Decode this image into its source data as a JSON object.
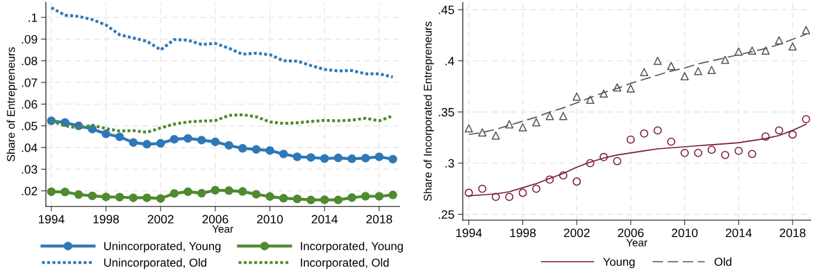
{
  "chart_data": [
    {
      "type": "line",
      "xlabel": "Year",
      "ylabel": "Share of Entrepreneurs",
      "x": [
        1994,
        1995,
        1996,
        1997,
        1998,
        1999,
        2000,
        2001,
        2002,
        2003,
        2004,
        2005,
        2006,
        2007,
        2008,
        2009,
        2010,
        2011,
        2012,
        2013,
        2014,
        2015,
        2016,
        2017,
        2018,
        2019
      ],
      "xlim": [
        1993.6,
        2019.5
      ],
      "xticks": [
        1994,
        1998,
        2002,
        2006,
        2010,
        2014,
        2018
      ],
      "ylim": [
        0.0128,
        0.107
      ],
      "yticks": [
        {
          "value": 0.02,
          "label": ".02"
        },
        {
          "value": 0.03,
          "label": ".03"
        },
        {
          "value": 0.04,
          "label": ".04"
        },
        {
          "value": 0.05,
          "label": ".05"
        },
        {
          "value": 0.06,
          "label": ".06"
        },
        {
          "value": 0.07,
          "label": ".07"
        },
        {
          "value": 0.08,
          "label": ".08"
        },
        {
          "value": 0.09,
          "label": ".09"
        },
        {
          "value": 0.1,
          "label": ".1"
        }
      ],
      "grid": true,
      "legend": "bottom",
      "series": [
        {
          "name": "Unincorporated, Young",
          "color": "#2f78b7",
          "marker": "circle",
          "line_style": "solid",
          "values": [
            0.0523,
            0.0515,
            0.05,
            0.0485,
            0.0463,
            0.0449,
            0.0423,
            0.0415,
            0.0419,
            0.0438,
            0.0442,
            0.0434,
            0.0426,
            0.041,
            0.0396,
            0.0391,
            0.0386,
            0.037,
            0.0357,
            0.0354,
            0.0349,
            0.0352,
            0.0348,
            0.0351,
            0.0357,
            0.0346
          ]
        },
        {
          "name": "Unincorporated, Old",
          "color": "#2f78b7",
          "marker": "none",
          "line_style": "dotted",
          "values": [
            0.1045,
            0.101,
            0.1005,
            0.099,
            0.0965,
            0.092,
            0.0905,
            0.089,
            0.085,
            0.0898,
            0.0895,
            0.0875,
            0.088,
            0.0858,
            0.083,
            0.0835,
            0.0828,
            0.08,
            0.0798,
            0.0778,
            0.076,
            0.0753,
            0.0755,
            0.074,
            0.074,
            0.0725
          ]
        },
        {
          "name": "Incorporated, Young",
          "color": "#4f8a2f",
          "marker": "circle",
          "line_style": "solid",
          "values": [
            0.0196,
            0.0195,
            0.0183,
            0.0177,
            0.0172,
            0.0171,
            0.0168,
            0.0168,
            0.0165,
            0.0188,
            0.0196,
            0.0189,
            0.0203,
            0.0201,
            0.0197,
            0.0184,
            0.0174,
            0.0166,
            0.0163,
            0.0158,
            0.0159,
            0.0158,
            0.0169,
            0.0175,
            0.0175,
            0.0181
          ]
        },
        {
          "name": "Incorporated, Old",
          "color": "#4f8a2f",
          "marker": "none",
          "line_style": "dotted",
          "values": [
            0.0522,
            0.05,
            0.049,
            0.0503,
            0.0487,
            0.0476,
            0.0478,
            0.047,
            0.049,
            0.0508,
            0.0518,
            0.0522,
            0.0524,
            0.0548,
            0.0551,
            0.0542,
            0.0518,
            0.0511,
            0.0514,
            0.052,
            0.0525,
            0.0523,
            0.0526,
            0.0535,
            0.0523,
            0.0546
          ]
        }
      ]
    },
    {
      "type": "line",
      "xlabel": "Year",
      "ylabel": "Share of Incorporated Entrepreneurs",
      "x": [
        1994,
        1995,
        1996,
        1997,
        1998,
        1999,
        2000,
        2001,
        2002,
        2003,
        2004,
        2005,
        2006,
        2007,
        2008,
        2009,
        2010,
        2011,
        2012,
        2013,
        2014,
        2015,
        2016,
        2017,
        2018,
        2019
      ],
      "xlim": [
        1993.55,
        2019.35
      ],
      "xticks": [
        1994,
        1998,
        2002,
        2006,
        2010,
        2014,
        2018
      ],
      "ylim": [
        0.2443,
        0.457
      ],
      "yticks": [
        {
          "value": 0.25,
          "label": ".25"
        },
        {
          "value": 0.3,
          "label": ".3"
        },
        {
          "value": 0.35,
          "label": ".35"
        },
        {
          "value": 0.4,
          "label": ".4"
        },
        {
          "value": 0.45,
          "label": ".45"
        }
      ],
      "grid": true,
      "legend": "bottom",
      "series": [
        {
          "type": "scatter",
          "color": "#7b1a3a",
          "marker": "circle",
          "values": [
            0.271,
            0.275,
            0.267,
            0.267,
            0.271,
            0.275,
            0.284,
            0.288,
            0.282,
            0.3,
            0.306,
            0.302,
            0.323,
            0.329,
            0.332,
            0.321,
            0.31,
            0.31,
            0.313,
            0.308,
            0.312,
            0.309,
            0.326,
            0.332,
            0.328,
            0.343
          ]
        },
        {
          "type": "scatter",
          "color": "#555555",
          "marker": "triangle",
          "values": [
            0.334,
            0.33,
            0.327,
            0.338,
            0.335,
            0.34,
            0.346,
            0.346,
            0.365,
            0.362,
            0.368,
            0.374,
            0.373,
            0.389,
            0.4,
            0.395,
            0.385,
            0.39,
            0.391,
            0.401,
            0.409,
            0.41,
            0.41,
            0.42,
            0.414,
            0.43
          ]
        },
        {
          "name": "Young",
          "type": "line",
          "color": "#7b1a3a",
          "marker": "none",
          "line_style": "solid",
          "values": [
            0.268,
            0.269,
            0.27,
            0.272,
            0.276,
            0.28,
            0.285,
            0.29,
            0.296,
            0.301,
            0.305,
            0.308,
            0.31,
            0.312,
            0.314,
            0.315,
            0.316,
            0.317,
            0.318,
            0.319,
            0.32,
            0.322,
            0.324,
            0.327,
            0.332,
            0.338
          ]
        },
        {
          "name": "Old",
          "type": "line",
          "color": "#555555",
          "marker": "none",
          "line_style": "dashed",
          "values": [
            0.328,
            0.33,
            0.333,
            0.337,
            0.341,
            0.345,
            0.35,
            0.354,
            0.359,
            0.364,
            0.369,
            0.373,
            0.378,
            0.382,
            0.386,
            0.39,
            0.393,
            0.397,
            0.4,
            0.403,
            0.406,
            0.409,
            0.412,
            0.416,
            0.421,
            0.426
          ]
        }
      ]
    }
  ]
}
